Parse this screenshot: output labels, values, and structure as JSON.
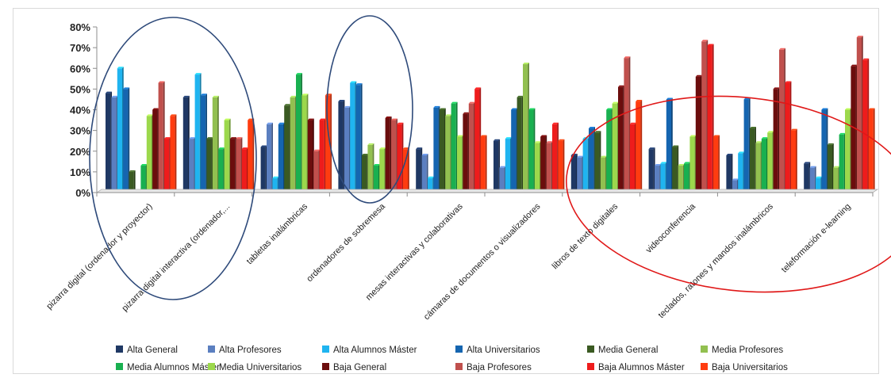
{
  "chart_data": {
    "type": "bar",
    "title": "",
    "xlabel": "",
    "ylabel": "",
    "ylim": [
      0,
      80
    ],
    "ytick_labels": [
      "0%",
      "10%",
      "20%",
      "30%",
      "40%",
      "50%",
      "60%",
      "70%",
      "80%"
    ],
    "grid": false,
    "legend_position": "bottom",
    "categories": [
      "pizarra digital (ordenador y proyector)",
      "pizarra digital interactiva (ordenador,...",
      "tabletas inalámbricas",
      "ordenadores de sobremesa",
      "mesas interactivas y colaborativas",
      "cámaras de documentos o visualizadores",
      "libros de texto digitales",
      "videoconferencia",
      "teclados, ratones y mandos inalámbricos",
      "teleformación e-learning"
    ],
    "series": [
      {
        "name": "Alta General",
        "color": "#1f3864",
        "values": [
          48,
          46,
          22,
          44,
          21,
          25,
          18,
          21,
          18,
          14
        ]
      },
      {
        "name": "Alta Profesores",
        "color": "#5b7fc0",
        "values": [
          46,
          26,
          33,
          41,
          18,
          12,
          17,
          13,
          6,
          12
        ]
      },
      {
        "name": "Alta Alumnos Máster",
        "color": "#1fb4f0",
        "values": [
          60,
          57,
          7,
          53,
          7,
          26,
          26,
          14,
          19,
          7
        ]
      },
      {
        "name": "Alta Universitarios",
        "color": "#1565b0",
        "values": [
          50,
          47,
          33,
          52,
          41,
          40,
          31,
          45,
          45,
          40
        ]
      },
      {
        "name": "Media General",
        "color": "#3a5a22",
        "values": [
          10,
          26,
          42,
          18,
          40,
          46,
          29,
          22,
          31,
          23
        ]
      },
      {
        "name": "Media Profesores",
        "color": "#92c050",
        "values": [
          0,
          46,
          46,
          23,
          37,
          62,
          17,
          13,
          24,
          12
        ]
      },
      {
        "name": "Media Alumnos Máster",
        "color": "#19b050",
        "values": [
          13,
          21,
          57,
          13,
          43,
          40,
          40,
          14,
          26,
          28
        ]
      },
      {
        "name": "Media Universitarios",
        "color": "#9cd84c",
        "values": [
          37,
          35,
          47,
          21,
          27,
          24,
          43,
          27,
          29,
          40
        ]
      },
      {
        "name": "Baja General",
        "color": "#6b0d0d",
        "values": [
          40,
          26,
          35,
          36,
          38,
          27,
          51,
          56,
          50,
          61
        ]
      },
      {
        "name": "Baja Profesores",
        "color": "#c0504d",
        "values": [
          53,
          26,
          20,
          35,
          43,
          24,
          65,
          73,
          69,
          75
        ]
      },
      {
        "name": "Baja Alumnos Máster",
        "color": "#ee1c1c",
        "values": [
          26,
          21,
          35,
          33,
          50,
          33,
          33,
          71,
          53,
          64
        ]
      },
      {
        "name": "Baja Universitarios",
        "color": "#ff3c10",
        "values": [
          37,
          35,
          47,
          21,
          27,
          25,
          44,
          27,
          30,
          40
        ]
      }
    ],
    "annotations": [
      {
        "shape": "ellipse",
        "color": "#2e4a7a",
        "groups": [
          "pizarra digital (ordenador y proyector)",
          "pizarra digital interactiva (ordenador,..."
        ]
      },
      {
        "shape": "ellipse",
        "color": "#2e4a7a",
        "groups": [
          "ordenadores de sobremesa"
        ]
      },
      {
        "shape": "ellipse",
        "color": "#e01818",
        "groups": [
          "libros de texto digitales",
          "videoconferencia",
          "teclados, ratones y mandos inalámbricos",
          "teleformación e-learning"
        ]
      }
    ]
  }
}
